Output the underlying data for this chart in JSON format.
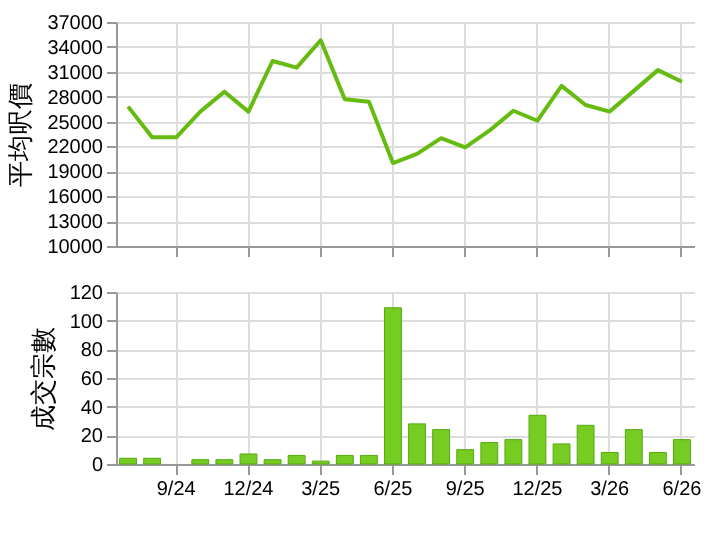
{
  "chart_data": [
    {
      "type": "line",
      "ylabel": "平均呎價",
      "categories": [
        null,
        null,
        null,
        null,
        null,
        null,
        null,
        null,
        null,
        null,
        null,
        null,
        null,
        null,
        null,
        null,
        null,
        null,
        null,
        null,
        null,
        null,
        null,
        null
      ],
      "series": [
        {
          "color": "#66bb11",
          "values": [
            26800,
            23100,
            23100,
            26200,
            28600,
            26200,
            32300,
            31500,
            34800,
            27700,
            27400,
            20000,
            21100,
            23000,
            21900,
            23900,
            26300,
            25100,
            29300,
            27000,
            26200,
            28700,
            31200,
            29800
          ]
        }
      ],
      "ylim": [
        10000,
        37000
      ],
      "yticks": [
        10000,
        13000,
        16000,
        19000,
        22000,
        25000,
        28000,
        31000,
        34000,
        37000
      ],
      "grid": true,
      "tick_labels": "y"
    },
    {
      "type": "bar",
      "ylabel": "成交宗數",
      "categories": [
        null,
        null,
        "9/24",
        null,
        null,
        "12/24",
        null,
        null,
        "3/25",
        null,
        null,
        "6/25",
        null,
        null,
        "9/25",
        null,
        null,
        "12/25",
        null,
        null,
        "3/26",
        null,
        null,
        "6/26"
      ],
      "series": [
        {
          "color": "#77cc22",
          "values": [
            4,
            4,
            null,
            3,
            3,
            7,
            3,
            6,
            2,
            6,
            6,
            109,
            28,
            24,
            10,
            15,
            17,
            34,
            14,
            27,
            8,
            24,
            8,
            17
          ]
        }
      ],
      "ylim": [
        0,
        120
      ],
      "yticks": [
        0,
        20,
        40,
        60,
        80,
        100,
        120
      ],
      "grid": true
    }
  ]
}
